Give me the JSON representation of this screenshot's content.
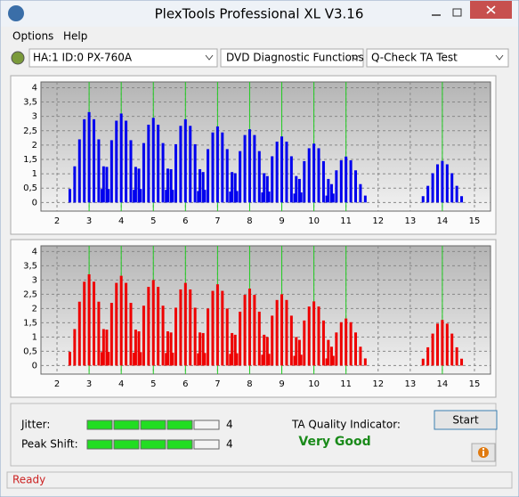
{
  "window": {
    "title": "PlexTools Professional XL V3.16"
  },
  "menu": [
    "Options",
    "Help"
  ],
  "toolbar": [
    "HA:1 ID:0  PX-760A",
    "DVD Diagnostic Functions",
    "Q-Check TA Test"
  ],
  "chart_data": [
    {
      "type": "bar",
      "xlim": [
        1.5,
        15.5
      ],
      "ylim": [
        -0.3,
        4.2
      ],
      "xticks": [
        2,
        3,
        4,
        5,
        6,
        7,
        8,
        9,
        10,
        11,
        12,
        13,
        14,
        15
      ],
      "yticks": [
        {
          "value": 0,
          "label": "0"
        },
        {
          "value": 0.5,
          "label": "0,5"
        },
        {
          "value": 1,
          "label": "1"
        },
        {
          "value": 1.5,
          "label": "1,5"
        },
        {
          "value": 2,
          "label": "2"
        },
        {
          "value": 2.5,
          "label": "2,5"
        },
        {
          "value": 3,
          "label": "3"
        },
        {
          "value": 3.5,
          "label": "3,5"
        },
        {
          "value": 4,
          "label": "4"
        }
      ],
      "grid": true,
      "markers": [
        3,
        4,
        5,
        6,
        7,
        8,
        9,
        10,
        11,
        14
      ],
      "marker_color": "#22cc22",
      "series": [
        {
          "color": "#0000ee",
          "x": [
            2.4,
            2.55,
            2.7,
            2.85,
            3,
            3.15,
            3.3,
            3.45,
            3.6,
            3.4,
            3.55,
            3.7,
            3.85,
            4,
            4.15,
            4.3,
            4.45,
            4.6,
            4.4,
            4.55,
            4.7,
            4.85,
            5,
            5.15,
            5.3,
            5.45,
            5.6,
            5.4,
            5.55,
            5.7,
            5.85,
            6,
            6.15,
            6.3,
            6.45,
            6.6,
            6.4,
            6.55,
            6.7,
            6.85,
            7,
            7.15,
            7.3,
            7.45,
            7.6,
            7.4,
            7.55,
            7.7,
            7.85,
            8,
            8.15,
            8.3,
            8.45,
            8.6,
            8.4,
            8.55,
            8.7,
            8.85,
            9,
            9.15,
            9.3,
            9.45,
            9.6,
            9.4,
            9.55,
            9.7,
            9.85,
            10,
            10.15,
            10.3,
            10.45,
            10.6,
            10.4,
            10.55,
            10.7,
            10.85,
            11,
            11.15,
            11.3,
            11.45,
            11.6,
            13.4,
            13.55,
            13.7,
            13.85,
            14,
            14.15,
            14.3,
            14.45,
            14.6
          ],
          "values": [
            0.47,
            1.26,
            2.2,
            2.9,
            3.15,
            2.9,
            2.2,
            1.26,
            0.47,
            0.47,
            1.24,
            2.17,
            2.85,
            3.1,
            2.85,
            2.17,
            1.24,
            0.47,
            0.44,
            1.18,
            2.07,
            2.71,
            2.95,
            2.71,
            2.07,
            1.18,
            0.44,
            0.44,
            1.16,
            2.03,
            2.67,
            2.9,
            2.67,
            2.03,
            1.16,
            0.44,
            0.4,
            1.06,
            1.86,
            2.44,
            2.65,
            2.44,
            1.86,
            1.06,
            0.4,
            0.38,
            1.02,
            1.79,
            2.35,
            2.55,
            2.35,
            1.79,
            1.02,
            0.38,
            0.35,
            0.92,
            1.61,
            2.12,
            2.3,
            2.12,
            1.61,
            0.92,
            0.35,
            0.31,
            0.82,
            1.44,
            1.89,
            2.05,
            1.89,
            1.44,
            0.82,
            0.31,
            0.24,
            0.64,
            1.12,
            1.47,
            1.6,
            1.47,
            1.12,
            0.64,
            0.24,
            0.22,
            0.58,
            1.02,
            1.33,
            1.45,
            1.33,
            1.02,
            0.58,
            0.22
          ]
        }
      ]
    },
    {
      "type": "bar",
      "xlim": [
        1.5,
        15.5
      ],
      "ylim": [
        -0.3,
        4.2
      ],
      "xticks": [
        2,
        3,
        4,
        5,
        6,
        7,
        8,
        9,
        10,
        11,
        12,
        13,
        14,
        15
      ],
      "yticks": [
        {
          "value": 0,
          "label": "0"
        },
        {
          "value": 0.5,
          "label": "0,5"
        },
        {
          "value": 1,
          "label": "1"
        },
        {
          "value": 1.5,
          "label": "1,5"
        },
        {
          "value": 2,
          "label": "2"
        },
        {
          "value": 2.5,
          "label": "2,5"
        },
        {
          "value": 3,
          "label": "3"
        },
        {
          "value": 3.5,
          "label": "3,5"
        },
        {
          "value": 4,
          "label": "4"
        }
      ],
      "grid": true,
      "markers": [
        3,
        4,
        5,
        6,
        7,
        8,
        9,
        10,
        11,
        14
      ],
      "marker_color": "#22cc22",
      "series": [
        {
          "color": "#ee0000",
          "x": [
            2.4,
            2.55,
            2.7,
            2.85,
            3,
            3.15,
            3.3,
            3.45,
            3.6,
            3.4,
            3.55,
            3.7,
            3.85,
            4,
            4.15,
            4.3,
            4.45,
            4.6,
            4.4,
            4.55,
            4.7,
            4.85,
            5,
            5.15,
            5.3,
            5.45,
            5.6,
            5.4,
            5.55,
            5.7,
            5.85,
            6,
            6.15,
            6.3,
            6.45,
            6.6,
            6.4,
            6.55,
            6.7,
            6.85,
            7,
            7.15,
            7.3,
            7.45,
            7.6,
            7.4,
            7.55,
            7.7,
            7.85,
            8,
            8.15,
            8.3,
            8.45,
            8.6,
            8.4,
            8.55,
            8.7,
            8.85,
            9,
            9.15,
            9.3,
            9.45,
            9.6,
            9.4,
            9.55,
            9.7,
            9.85,
            10,
            10.15,
            10.3,
            10.45,
            10.6,
            10.4,
            10.55,
            10.7,
            10.85,
            11,
            11.15,
            11.3,
            11.45,
            11.6,
            13.4,
            13.55,
            13.7,
            13.85,
            14,
            14.15,
            14.3,
            14.45,
            14.6
          ],
          "values": [
            0.48,
            1.28,
            2.24,
            2.94,
            3.2,
            2.94,
            2.24,
            1.28,
            0.48,
            0.47,
            1.26,
            2.2,
            2.9,
            3.15,
            2.9,
            2.2,
            1.26,
            0.47,
            0.45,
            1.2,
            2.1,
            2.76,
            3,
            2.76,
            2.1,
            1.2,
            0.45,
            0.44,
            1.16,
            2.03,
            2.67,
            2.9,
            2.67,
            2.03,
            1.16,
            0.44,
            0.43,
            1.14,
            2,
            2.62,
            2.85,
            2.62,
            2,
            1.14,
            0.43,
            0.41,
            1.08,
            1.89,
            2.48,
            2.7,
            2.48,
            1.89,
            1.08,
            0.41,
            0.38,
            1,
            1.75,
            2.3,
            2.5,
            2.3,
            1.75,
            1,
            0.38,
            0.34,
            0.9,
            1.58,
            2.07,
            2.25,
            2.07,
            1.58,
            0.9,
            0.34,
            0.25,
            0.66,
            1.16,
            1.52,
            1.65,
            1.52,
            1.16,
            0.66,
            0.25,
            0.24,
            0.64,
            1.12,
            1.47,
            1.6,
            1.47,
            1.12,
            0.64,
            0.24
          ]
        }
      ]
    }
  ],
  "results": {
    "jitter_label": "Jitter:",
    "jitter": 4,
    "peak_shift_label": "Peak Shift:",
    "peak_shift": 4,
    "quality_label": "TA Quality Indicator:",
    "quality": "Very Good",
    "button": "Start"
  },
  "status": "Ready"
}
